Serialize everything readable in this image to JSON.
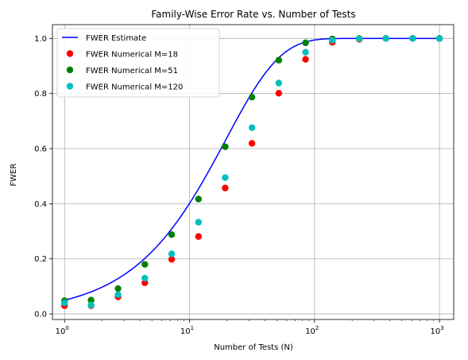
{
  "chart_data": {
    "type": "scatter",
    "title": "Family-Wise Error Rate vs. Number of Tests",
    "xlabel": "Number of Tests (N)",
    "ylabel": "FWER",
    "xscale": "log",
    "xlim": [
      0.8,
      1300
    ],
    "ylim": [
      -0.02,
      1.05
    ],
    "xticks": [
      {
        "value": 1,
        "base": "10",
        "exp": "0"
      },
      {
        "value": 10,
        "base": "10",
        "exp": "1"
      },
      {
        "value": 100,
        "base": "10",
        "exp": "2"
      },
      {
        "value": 1000,
        "base": "10",
        "exp": "3"
      }
    ],
    "yticks": [
      {
        "value": 0.0,
        "label": "0.0"
      },
      {
        "value": 0.2,
        "label": "0.2"
      },
      {
        "value": 0.4,
        "label": "0.4"
      },
      {
        "value": 0.6,
        "label": "0.6"
      },
      {
        "value": 0.8,
        "label": "0.8"
      },
      {
        "value": 1.0,
        "label": "1.0"
      }
    ],
    "grid": true,
    "legend_position": "top-left",
    "line_series": {
      "name": "FWER Estimate",
      "color": "#0000ff",
      "formula": "1 - (1 - 0.05)^N"
    },
    "series": [
      {
        "name": "FWER Numerical M=18",
        "color": "#ff0000",
        "x": [
          1,
          1.63,
          2.68,
          4.39,
          7.2,
          11.8,
          19.3,
          31.6,
          51.8,
          84.8,
          139,
          228,
          373,
          611,
          1000
        ],
        "y": [
          0.03,
          0.03,
          0.062,
          0.113,
          0.198,
          0.281,
          0.457,
          0.619,
          0.801,
          0.924,
          0.986,
          0.997,
          1.0,
          1.0,
          1.0
        ]
      },
      {
        "name": "FWER Numerical M=51",
        "color": "#008000",
        "x": [
          1,
          1.63,
          2.68,
          4.39,
          7.2,
          11.8,
          19.3,
          31.6,
          51.8,
          84.8,
          139,
          228,
          373,
          611,
          1000
        ],
        "y": [
          0.048,
          0.05,
          0.092,
          0.18,
          0.288,
          0.417,
          0.607,
          0.787,
          0.921,
          0.984,
          0.998,
          1.0,
          1.0,
          1.0,
          1.0
        ]
      },
      {
        "name": "FWER Numerical M=120",
        "color": "#00bfbf",
        "x": [
          1,
          1.63,
          2.68,
          4.39,
          7.2,
          11.8,
          19.3,
          31.6,
          51.8,
          84.8,
          139,
          228,
          373,
          611,
          1000
        ],
        "y": [
          0.04,
          0.032,
          0.07,
          0.13,
          0.218,
          0.333,
          0.495,
          0.676,
          0.838,
          0.95,
          0.993,
          0.999,
          1.0,
          1.0,
          1.0
        ]
      }
    ]
  }
}
